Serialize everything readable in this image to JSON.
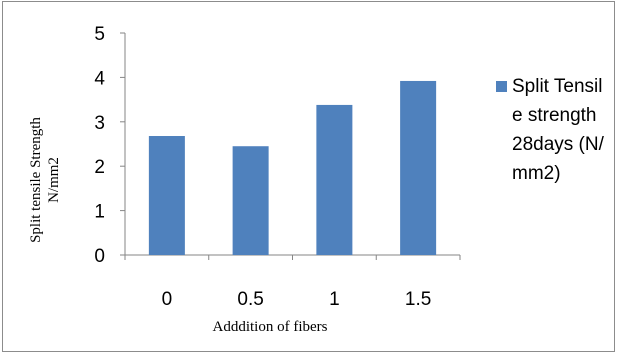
{
  "chart_data": {
    "type": "bar",
    "categories": [
      "0",
      "0.5",
      "1",
      "1.5"
    ],
    "series": [
      {
        "name": "Split Tensile strength 28days (N/mm2)",
        "values": [
          2.68,
          2.45,
          3.38,
          3.92
        ],
        "color": "#4f81bd"
      }
    ],
    "title": "",
    "xlabel": "Adddition of fibers",
    "ylabel_line1": "Split tensile Strength",
    "ylabel_line2": "N/mm2",
    "ylim": [
      0,
      5
    ],
    "yticks": [
      "0",
      "1",
      "2",
      "3",
      "4",
      "5"
    ],
    "grid": false,
    "legend_position": "right"
  }
}
